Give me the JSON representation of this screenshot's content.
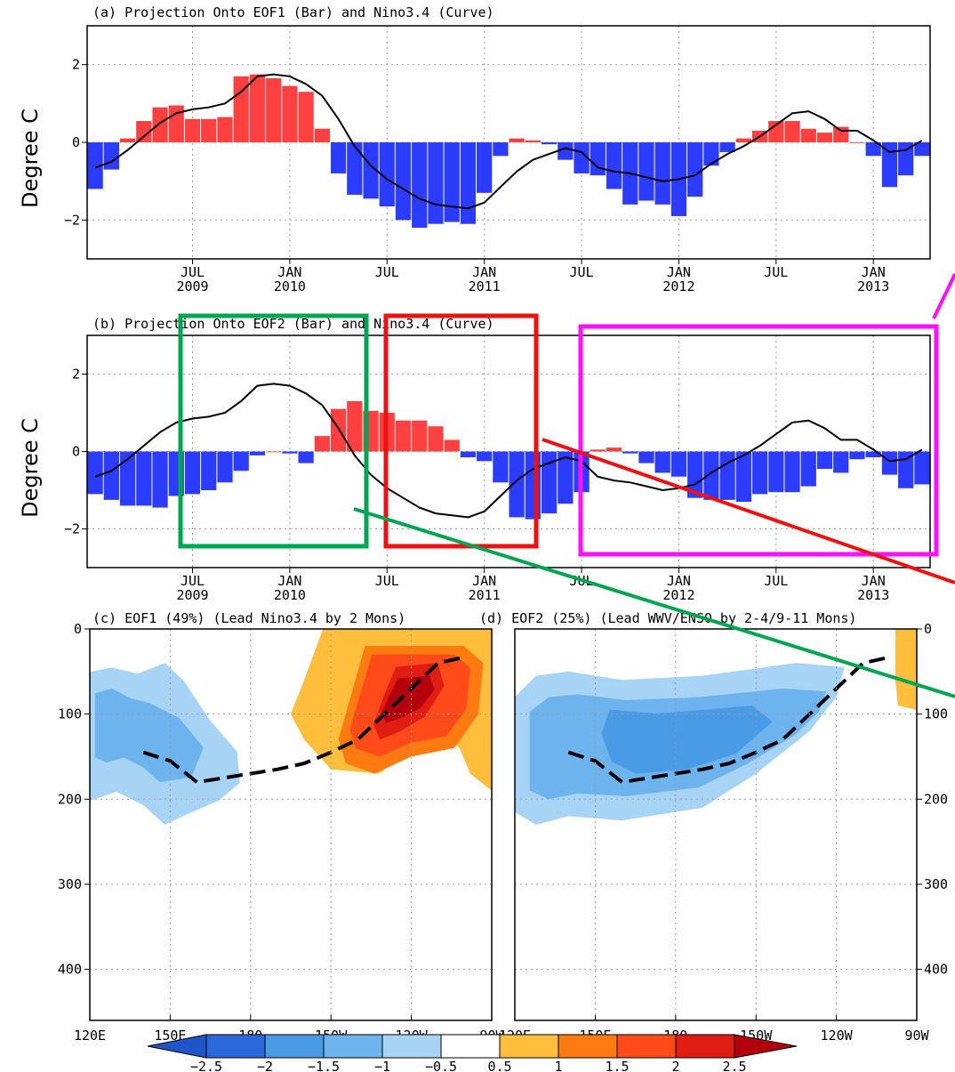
{
  "chart_data": [
    {
      "type": "bar",
      "title": "(a) Projection Onto EOF1 (Bar) and Nino3.4 (Curve)",
      "ylabel": "Degree C",
      "ylim": [
        -3,
        3
      ],
      "yticks": [
        -2,
        0,
        2
      ],
      "x_tick_labels": [
        {
          "month": "JUL",
          "year": "2009"
        },
        {
          "month": "JAN",
          "year": "2010"
        },
        {
          "month": "JUL",
          "year": ""
        },
        {
          "month": "JAN",
          "year": "2011"
        },
        {
          "month": "JUL",
          "year": ""
        },
        {
          "month": "JAN",
          "year": "2012"
        },
        {
          "month": "JUL",
          "year": ""
        },
        {
          "month": "JAN",
          "year": "2013"
        }
      ],
      "x_start": "2009-01",
      "bar_colors": {
        "positive": "#ff4040",
        "negative": "#2b3cff"
      },
      "series": [
        {
          "kind": "bar",
          "values": [
            -1.2,
            -0.7,
            0.1,
            0.55,
            0.9,
            0.95,
            0.6,
            0.6,
            0.65,
            1.7,
            1.75,
            1.65,
            1.45,
            1.3,
            0.35,
            -0.8,
            -1.35,
            -1.45,
            -1.65,
            -2.0,
            -2.2,
            -2.1,
            -2.05,
            -2.1,
            -1.3,
            -0.35,
            0.1,
            0.05,
            -0.05,
            -0.45,
            -0.8,
            -0.85,
            -1.2,
            -1.6,
            -1.5,
            -1.6,
            -1.9,
            -1.4,
            -0.6,
            -0.25,
            0.1,
            0.3,
            0.55,
            0.55,
            0.35,
            0.25,
            0.4,
            0.0,
            -0.35,
            -1.15,
            -0.85,
            -0.35
          ]
        },
        {
          "kind": "line",
          "values": [
            -0.65,
            -0.5,
            -0.2,
            0.15,
            0.5,
            0.75,
            0.85,
            0.9,
            1.0,
            1.3,
            1.7,
            1.75,
            1.7,
            1.5,
            1.2,
            0.6,
            -0.1,
            -0.6,
            -0.95,
            -1.2,
            -1.45,
            -1.6,
            -1.65,
            -1.7,
            -1.55,
            -1.15,
            -0.75,
            -0.45,
            -0.3,
            -0.15,
            -0.25,
            -0.65,
            -0.75,
            -0.8,
            -0.9,
            -1.0,
            -0.95,
            -0.85,
            -0.55,
            -0.3,
            -0.1,
            0.15,
            0.45,
            0.75,
            0.8,
            0.6,
            0.3,
            0.3,
            0.05,
            -0.25,
            -0.2,
            0.05
          ]
        }
      ]
    },
    {
      "type": "bar",
      "title": "(b) Projection Onto EOF2 (Bar) and Nino3.4 (Curve)",
      "ylabel": "Degree C",
      "ylim": [
        -3,
        3
      ],
      "yticks": [
        -2,
        0,
        2
      ],
      "x_tick_labels": [
        {
          "month": "JUL",
          "year": "2009"
        },
        {
          "month": "JAN",
          "year": "2010"
        },
        {
          "month": "JUL",
          "year": ""
        },
        {
          "month": "JAN",
          "year": "2011"
        },
        {
          "month": "JUL",
          "year": ""
        },
        {
          "month": "JAN",
          "year": "2012"
        },
        {
          "month": "JUL",
          "year": ""
        },
        {
          "month": "JAN",
          "year": "2013"
        }
      ],
      "x_start": "2009-01",
      "bar_colors": {
        "positive": "#ff4040",
        "negative": "#2b3cff"
      },
      "series": [
        {
          "kind": "bar",
          "values": [
            -1.1,
            -1.25,
            -1.4,
            -1.4,
            -1.45,
            -1.15,
            -1.1,
            -1.0,
            -0.8,
            -0.5,
            -0.1,
            0.0,
            -0.05,
            -0.3,
            0.4,
            1.1,
            1.3,
            1.05,
            1.0,
            0.8,
            0.8,
            0.65,
            0.3,
            -0.15,
            -0.25,
            -0.8,
            -1.7,
            -1.75,
            -1.6,
            -1.35,
            -1.05,
            0.05,
            0.1,
            -0.05,
            -0.3,
            -0.55,
            -0.65,
            -1.2,
            -1.25,
            -1.25,
            -1.3,
            -1.1,
            -1.05,
            -1.05,
            -0.9,
            -0.45,
            -0.55,
            -0.2,
            -0.15,
            -0.6,
            -0.95,
            -0.85
          ]
        },
        {
          "kind": "line",
          "values": [
            -0.65,
            -0.5,
            -0.2,
            0.15,
            0.5,
            0.75,
            0.85,
            0.9,
            1.0,
            1.3,
            1.7,
            1.75,
            1.7,
            1.5,
            1.2,
            0.6,
            -0.1,
            -0.6,
            -0.95,
            -1.2,
            -1.45,
            -1.6,
            -1.65,
            -1.7,
            -1.55,
            -1.15,
            -0.75,
            -0.45,
            -0.3,
            -0.15,
            -0.25,
            -0.65,
            -0.75,
            -0.8,
            -0.9,
            -1.0,
            -0.95,
            -0.85,
            -0.55,
            -0.3,
            -0.1,
            0.15,
            0.45,
            0.75,
            0.8,
            0.6,
            0.3,
            0.3,
            0.05,
            -0.25,
            -0.2,
            0.05
          ]
        }
      ]
    },
    {
      "type": "heatmap",
      "title": "(c) EOF1 (49%) (Lead Nino3.4 by 2 Mons)",
      "x_tick_labels": [
        "120E",
        "150E",
        "180",
        "150W",
        "120W",
        "90W"
      ],
      "y_tick_labels": [
        "0",
        "100",
        "200",
        "300",
        "400"
      ],
      "ylim": [
        0,
        460
      ],
      "thermocline_depth_m": [
        [
          140,
          145
        ],
        [
          150,
          155
        ],
        [
          160,
          180
        ],
        [
          170,
          175
        ],
        [
          180,
          170
        ],
        [
          190,
          165
        ],
        [
          200,
          158
        ],
        [
          210,
          145
        ],
        [
          220,
          130
        ],
        [
          230,
          100
        ],
        [
          240,
          70
        ],
        [
          250,
          40
        ],
        [
          260,
          33
        ]
      ],
      "anomaly_regions": [
        {
          "level": -0.5,
          "color": "#a7d3f5",
          "shape": "blob-west",
          "depth_range": [
            40,
            230
          ]
        },
        {
          "level": -1,
          "color": "#6db3ee",
          "shape": "core-west",
          "depth_range": [
            70,
            180
          ]
        },
        {
          "level": 0.5,
          "color": "#ffbe3c",
          "shape": "blob-east",
          "depth_range": [
            0,
            190
          ]
        },
        {
          "level": 1,
          "color": "#ff7a10",
          "shape": "ring-east",
          "depth_range": [
            20,
            170
          ]
        },
        {
          "level": 1.5,
          "color": "#ff4b1a",
          "shape": "ring-east",
          "depth_range": [
            30,
            150
          ]
        },
        {
          "level": 2,
          "color": "#e01d12",
          "shape": "core-east",
          "depth_range": [
            40,
            130
          ]
        },
        {
          "level": 2.5,
          "color": "#b3000c",
          "shape": "core-east",
          "depth_range": [
            55,
            110
          ]
        }
      ]
    },
    {
      "type": "heatmap",
      "title": "(d) EOF2 (25%) (Lead WWV/ENSO by 2-4/9-11 Mons)",
      "x_tick_labels": [
        "120E",
        "150E",
        "180",
        "150W",
        "120W",
        "90W"
      ],
      "y_tick_labels": [
        "0",
        "100",
        "200",
        "300",
        "400"
      ],
      "ylim": [
        0,
        460
      ],
      "thermocline_depth_m": [
        [
          140,
          145
        ],
        [
          150,
          155
        ],
        [
          160,
          180
        ],
        [
          170,
          175
        ],
        [
          180,
          170
        ],
        [
          190,
          165
        ],
        [
          200,
          158
        ],
        [
          210,
          145
        ],
        [
          220,
          130
        ],
        [
          230,
          100
        ],
        [
          240,
          70
        ],
        [
          250,
          40
        ],
        [
          260,
          33
        ]
      ],
      "anomaly_regions": [
        {
          "level": -0.5,
          "color": "#a7d3f5",
          "shape": "band",
          "depth_range": [
            40,
            230
          ]
        },
        {
          "level": -1,
          "color": "#6db3ee",
          "shape": "band",
          "depth_range": [
            70,
            200
          ]
        },
        {
          "level": -1.5,
          "color": "#4a9be6",
          "shape": "core",
          "depth_range": [
            90,
            170
          ]
        },
        {
          "level": 0.5,
          "color": "#ffbe3c",
          "shape": "edge-east",
          "depth_range": [
            0,
            95
          ]
        }
      ]
    }
  ],
  "colorbar": {
    "labels": [
      "-2.5",
      "-2",
      "-1.5",
      "-1",
      "-0.5",
      "0.5",
      "1",
      "1.5",
      "2",
      "2.5"
    ],
    "colors": [
      "#2b69da",
      "#4a9be6",
      "#6db3ee",
      "#a7d3f5",
      "#ffffff",
      "#ffbe3c",
      "#ff7a10",
      "#ff4b1a",
      "#e01d12",
      "#b3000c"
    ]
  },
  "annotation_colors": {
    "green": "#00a550",
    "red": "#ee1111",
    "magenta": "#ff10ff"
  }
}
